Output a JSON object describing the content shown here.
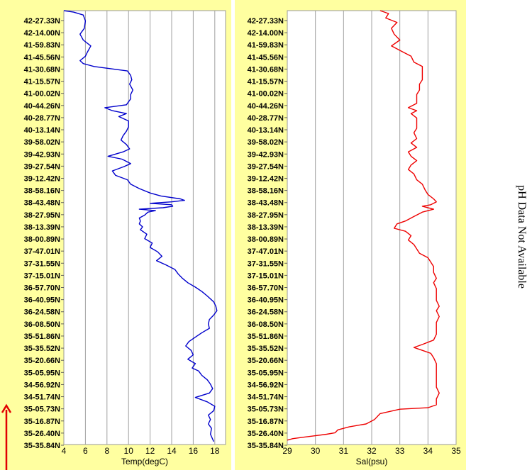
{
  "chart_data": [
    {
      "type": "line",
      "xlabel": "Temp(degC)",
      "xlim": [
        4,
        19
      ],
      "x_ticks": [
        4,
        6,
        8,
        10,
        12,
        14,
        16,
        18
      ],
      "y_ticks": [
        "42-27.33N",
        "42-14.00N",
        "41-59.83N",
        "41-45.56N",
        "41-30.68N",
        "41-15.57N",
        "41-00.02N",
        "40-44.26N",
        "40-28.77N",
        "40-13.14N",
        "39-58.02N",
        "39-42.93N",
        "39-27.54N",
        "39-12.42N",
        "38-58.16N",
        "38-43.48N",
        "38-27.95N",
        "38-13.39N",
        "38-00.89N",
        "37-47.01N",
        "37-31.55N",
        "37-15.01N",
        "36-57.70N",
        "36-40.95N",
        "36-24.58N",
        "36-08.50N",
        "35-51.86N",
        "35-35.52N",
        "35-20.66N",
        "35-05.95N",
        "34-56.92N",
        "34-51.74N",
        "35-05.73N",
        "35-16.87N",
        "35-26.40N",
        "35-35.84N"
      ],
      "color": "#0000cc",
      "series": [
        {
          "points": [
            [
              4.0,
              15.0
            ],
            [
              4.9,
              14.9
            ],
            [
              5.8,
              14.7
            ],
            [
              6.0,
              14.3
            ],
            [
              5.9,
              13.8
            ],
            [
              5.5,
              13.4
            ],
            [
              5.8,
              13.0
            ],
            [
              6.5,
              12.6
            ],
            [
              6.2,
              12.2
            ],
            [
              6.0,
              11.9
            ],
            [
              5.5,
              11.6
            ],
            [
              5.8,
              11.4
            ],
            [
              6.8,
              11.2
            ],
            [
              9.9,
              10.9
            ],
            [
              10.2,
              10.6
            ],
            [
              10.3,
              10.3
            ],
            [
              10.1,
              10.0
            ],
            [
              10.4,
              9.6
            ],
            [
              10.2,
              9.3
            ],
            [
              10.2,
              9.0
            ],
            [
              10.0,
              8.8
            ],
            [
              9.8,
              8.6
            ],
            [
              7.8,
              8.4
            ],
            [
              8.5,
              8.2
            ],
            [
              9.8,
              8.0
            ],
            [
              9.1,
              7.8
            ],
            [
              10.0,
              7.5
            ],
            [
              10.0,
              7.1
            ],
            [
              9.8,
              6.8
            ],
            [
              9.5,
              6.5
            ],
            [
              9.3,
              6.2
            ],
            [
              9.8,
              5.9
            ],
            [
              10.1,
              5.6
            ],
            [
              9.5,
              5.4
            ],
            [
              8.1,
              5.1
            ],
            [
              9.4,
              4.9
            ],
            [
              10.2,
              4.6
            ],
            [
              9.6,
              4.4
            ],
            [
              8.5,
              4.1
            ],
            [
              8.8,
              3.8
            ],
            [
              9.9,
              3.5
            ],
            [
              10.2,
              3.2
            ],
            [
              11.0,
              2.9
            ],
            [
              12.0,
              2.6
            ],
            [
              13.0,
              2.4
            ],
            [
              14.8,
              2.2
            ],
            [
              15.2,
              2.1
            ],
            [
              14.0,
              2.0
            ],
            [
              12.0,
              1.9
            ],
            [
              14.0,
              1.8
            ],
            [
              14.1,
              1.7
            ],
            [
              13.2,
              1.6
            ],
            [
              11.0,
              1.5
            ],
            [
              12.5,
              1.4
            ],
            [
              11.8,
              1.3
            ],
            [
              11.5,
              1.1
            ],
            [
              11.0,
              0.9
            ],
            [
              11.1,
              0.7
            ],
            [
              11.0,
              0.5
            ],
            [
              11.3,
              0.3
            ],
            [
              11.1,
              0.1
            ],
            [
              11.7,
              -0.2
            ],
            [
              11.5,
              -0.5
            ],
            [
              12.2,
              -0.8
            ],
            [
              12.0,
              -1.1
            ],
            [
              12.7,
              -1.4
            ],
            [
              13.1,
              -1.7
            ],
            [
              12.6,
              -2.0
            ],
            [
              13.5,
              -2.3
            ],
            [
              14.3,
              -2.6
            ],
            [
              14.6,
              -2.9
            ],
            [
              15.0,
              -3.2
            ],
            [
              15.5,
              -3.5
            ],
            [
              16.2,
              -3.8
            ],
            [
              16.8,
              -4.1
            ],
            [
              17.3,
              -4.4
            ],
            [
              17.9,
              -4.8
            ],
            [
              18.1,
              -5.1
            ],
            [
              18.2,
              -5.4
            ],
            [
              17.9,
              -5.7
            ],
            [
              17.5,
              -6.0
            ],
            [
              17.4,
              -6.3
            ],
            [
              17.5,
              -6.6
            ],
            [
              16.8,
              -6.9
            ],
            [
              16.2,
              -7.2
            ],
            [
              15.6,
              -7.5
            ],
            [
              15.3,
              -7.8
            ],
            [
              15.8,
              -8.1
            ],
            [
              16.0,
              -8.4
            ],
            [
              15.5,
              -8.7
            ],
            [
              16.2,
              -9.0
            ],
            [
              15.9,
              -9.3
            ],
            [
              16.5,
              -9.5
            ],
            [
              16.8,
              -9.8
            ],
            [
              17.3,
              -10.1
            ],
            [
              17.6,
              -10.4
            ],
            [
              17.8,
              -10.7
            ],
            [
              17.5,
              -11.0
            ],
            [
              16.2,
              -11.3
            ],
            [
              17.3,
              -11.6
            ],
            [
              18.0,
              -11.9
            ],
            [
              17.9,
              -12.2
            ],
            [
              17.4,
              -12.5
            ],
            [
              17.6,
              -12.8
            ],
            [
              17.4,
              -13.1
            ],
            [
              17.7,
              -13.4
            ],
            [
              17.6,
              -13.8
            ],
            [
              17.9,
              -14.3
            ]
          ]
        }
      ]
    },
    {
      "type": "line",
      "xlabel": "Sal(psu)",
      "xlim": [
        29,
        35
      ],
      "x_ticks": [
        29,
        30,
        31,
        32,
        33,
        34,
        35
      ],
      "y_ticks": [
        "42-27.33N",
        "42-14.00N",
        "41-59.83N",
        "41-45.56N",
        "41-30.68N",
        "41-15.57N",
        "41-00.02N",
        "40-44.26N",
        "40-28.77N",
        "40-13.14N",
        "39-58.02N",
        "39-42.93N",
        "39-27.54N",
        "39-12.42N",
        "38-58.16N",
        "38-43.48N",
        "38-27.95N",
        "38-13.39N",
        "38-00.89N",
        "37-47.01N",
        "37-31.55N",
        "37-15.01N",
        "36-57.70N",
        "36-40.95N",
        "36-24.58N",
        "36-08.50N",
        "35-51.86N",
        "35-35.52N",
        "35-20.66N",
        "35-05.95N",
        "34-56.92N",
        "34-51.74N",
        "35-05.73N",
        "35-16.87N",
        "35-26.40N",
        "35-35.84N"
      ],
      "color": "#ee0000",
      "series": [
        {
          "points": [
            [
              32.3,
              15.0
            ],
            [
              32.6,
              14.8
            ],
            [
              32.5,
              14.5
            ],
            [
              32.9,
              14.2
            ],
            [
              32.7,
              13.8
            ],
            [
              32.8,
              13.4
            ],
            [
              33.0,
              13.0
            ],
            [
              32.7,
              12.6
            ],
            [
              33.1,
              12.2
            ],
            [
              33.4,
              11.9
            ],
            [
              33.5,
              11.5
            ],
            [
              33.8,
              11.2
            ],
            [
              33.8,
              10.8
            ],
            [
              33.8,
              10.3
            ],
            [
              33.7,
              10.0
            ],
            [
              33.7,
              9.6
            ],
            [
              33.6,
              9.3
            ],
            [
              33.6,
              9.0
            ],
            [
              33.6,
              8.7
            ],
            [
              33.3,
              8.4
            ],
            [
              33.6,
              8.2
            ],
            [
              33.4,
              8.0
            ],
            [
              33.6,
              7.7
            ],
            [
              33.6,
              7.3
            ],
            [
              33.6,
              7.0
            ],
            [
              33.5,
              6.7
            ],
            [
              33.6,
              6.3
            ],
            [
              33.4,
              6.0
            ],
            [
              33.6,
              5.7
            ],
            [
              33.3,
              5.4
            ],
            [
              33.4,
              5.1
            ],
            [
              33.6,
              4.8
            ],
            [
              33.4,
              4.5
            ],
            [
              33.3,
              4.2
            ],
            [
              33.5,
              3.9
            ],
            [
              33.6,
              3.5
            ],
            [
              33.8,
              3.2
            ],
            [
              33.9,
              2.8
            ],
            [
              34.0,
              2.5
            ],
            [
              34.2,
              2.2
            ],
            [
              34.3,
              2.0
            ],
            [
              34.1,
              1.8
            ],
            [
              33.8,
              1.7
            ],
            [
              34.2,
              1.5
            ],
            [
              33.8,
              1.3
            ],
            [
              33.5,
              1.0
            ],
            [
              33.2,
              0.7
            ],
            [
              32.9,
              0.5
            ],
            [
              32.8,
              0.2
            ],
            [
              33.2,
              0.0
            ],
            [
              33.4,
              -0.3
            ],
            [
              33.3,
              -0.6
            ],
            [
              33.5,
              -0.9
            ],
            [
              33.6,
              -1.2
            ],
            [
              33.7,
              -1.5
            ],
            [
              34.0,
              -1.8
            ],
            [
              34.1,
              -2.1
            ],
            [
              34.2,
              -2.4
            ],
            [
              34.2,
              -2.8
            ],
            [
              34.3,
              -3.2
            ],
            [
              34.2,
              -3.5
            ],
            [
              34.3,
              -3.9
            ],
            [
              34.3,
              -4.3
            ],
            [
              34.3,
              -4.7
            ],
            [
              34.4,
              -5.1
            ],
            [
              34.3,
              -5.4
            ],
            [
              34.4,
              -5.8
            ],
            [
              34.3,
              -6.2
            ],
            [
              34.3,
              -6.6
            ],
            [
              34.3,
              -7.0
            ],
            [
              34.2,
              -7.4
            ],
            [
              33.8,
              -7.7
            ],
            [
              33.5,
              -7.9
            ],
            [
              33.8,
              -8.1
            ],
            [
              34.1,
              -8.3
            ],
            [
              34.2,
              -8.6
            ],
            [
              34.3,
              -9.0
            ],
            [
              34.3,
              -9.4
            ],
            [
              34.3,
              -9.8
            ],
            [
              34.3,
              -10.2
            ],
            [
              34.3,
              -10.6
            ],
            [
              34.4,
              -11.0
            ],
            [
              34.3,
              -11.4
            ],
            [
              34.3,
              -11.8
            ],
            [
              34.0,
              -12.0
            ],
            [
              33.0,
              -12.1
            ],
            [
              32.3,
              -12.4
            ],
            [
              32.1,
              -12.8
            ],
            [
              31.8,
              -13.1
            ],
            [
              31.2,
              -13.3
            ],
            [
              30.8,
              -13.5
            ],
            [
              30.7,
              -13.7
            ],
            [
              30.4,
              -13.8
            ],
            [
              30.0,
              -13.9
            ],
            [
              29.6,
              -14.0
            ],
            [
              29.2,
              -14.1
            ],
            [
              29.0,
              -14.2
            ]
          ]
        }
      ]
    }
  ],
  "side_note": "pH Data Not Available"
}
